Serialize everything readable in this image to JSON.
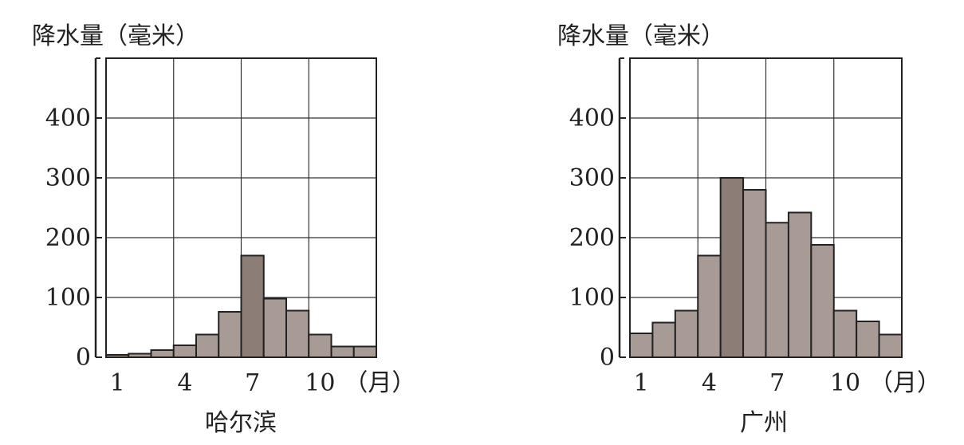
{
  "chart_data": [
    {
      "type": "bar",
      "title": "哈尔滨",
      "ylabel": "降水量（毫米）",
      "xlabel": "（月）",
      "categories": [
        1,
        2,
        3,
        4,
        5,
        6,
        7,
        8,
        9,
        10,
        11,
        12
      ],
      "x_tick_labels": [
        "1",
        "4",
        "7",
        "10"
      ],
      "x_ticks": [
        1,
        4,
        7,
        10
      ],
      "y_ticks": [
        0,
        100,
        200,
        300,
        400
      ],
      "y_tick_labels": [
        "0",
        "100",
        "200",
        "300",
        "400"
      ],
      "values": [
        4,
        6,
        12,
        20,
        38,
        76,
        170,
        98,
        78,
        38,
        18,
        18
      ],
      "ylim": [
        0,
        500
      ],
      "grid": true
    },
    {
      "type": "bar",
      "title": "广州",
      "ylabel": "降水量（毫米）",
      "xlabel": "（月）",
      "categories": [
        1,
        2,
        3,
        4,
        5,
        6,
        7,
        8,
        9,
        10,
        11,
        12
      ],
      "x_tick_labels": [
        "1",
        "4",
        "7",
        "10"
      ],
      "x_ticks": [
        1,
        4,
        7,
        10
      ],
      "y_ticks": [
        0,
        100,
        200,
        300,
        400
      ],
      "y_tick_labels": [
        "0",
        "100",
        "200",
        "300",
        "400"
      ],
      "values": [
        40,
        58,
        78,
        170,
        300,
        280,
        225,
        242,
        188,
        78,
        60,
        38
      ],
      "ylim": [
        0,
        500
      ],
      "grid": true
    }
  ],
  "colors": {
    "bar_fill": "#a89a94",
    "bar_fill_dark": "#8c7d77",
    "ink": "#222222"
  }
}
